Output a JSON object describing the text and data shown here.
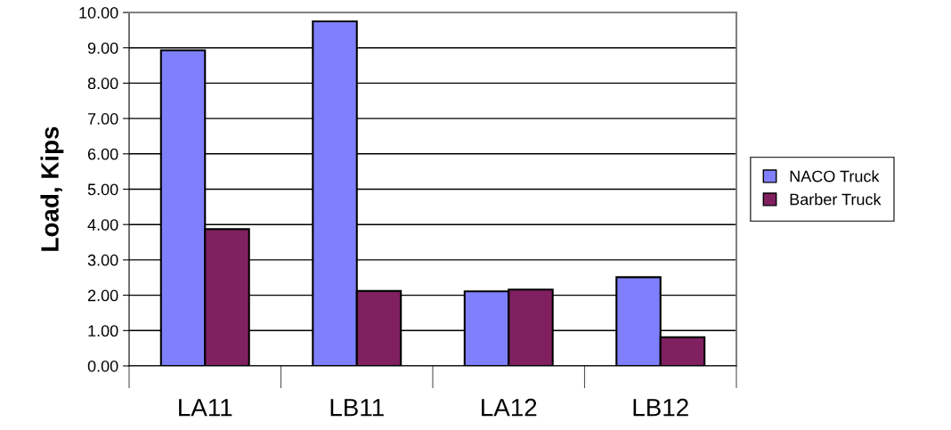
{
  "chart_data": {
    "type": "bar",
    "ylabel": "Load, Kips",
    "categories": [
      "LA11",
      "LB11",
      "LA12",
      "LB12"
    ],
    "series": [
      {
        "name": "NACO Truck",
        "color": "#8080ff",
        "values": [
          8.93,
          9.75,
          2.11,
          2.51
        ]
      },
      {
        "name": "Barber Truck",
        "color": "#802060",
        "values": [
          3.87,
          2.12,
          2.16,
          0.81
        ]
      }
    ],
    "ylim": [
      0,
      10
    ],
    "yticks": [
      {
        "value": 0,
        "label": "0.00"
      },
      {
        "value": 1,
        "label": "1.00"
      },
      {
        "value": 2,
        "label": "2.00"
      },
      {
        "value": 3,
        "label": "3.00"
      },
      {
        "value": 4,
        "label": "4.00"
      },
      {
        "value": 5,
        "label": "5.00"
      },
      {
        "value": 6,
        "label": "6.00"
      },
      {
        "value": 7,
        "label": "7.00"
      },
      {
        "value": 8,
        "label": "8.00"
      },
      {
        "value": 9,
        "label": "9.00"
      },
      {
        "value": 10,
        "label": "10.00"
      }
    ],
    "grid": "y",
    "legend": "right"
  }
}
